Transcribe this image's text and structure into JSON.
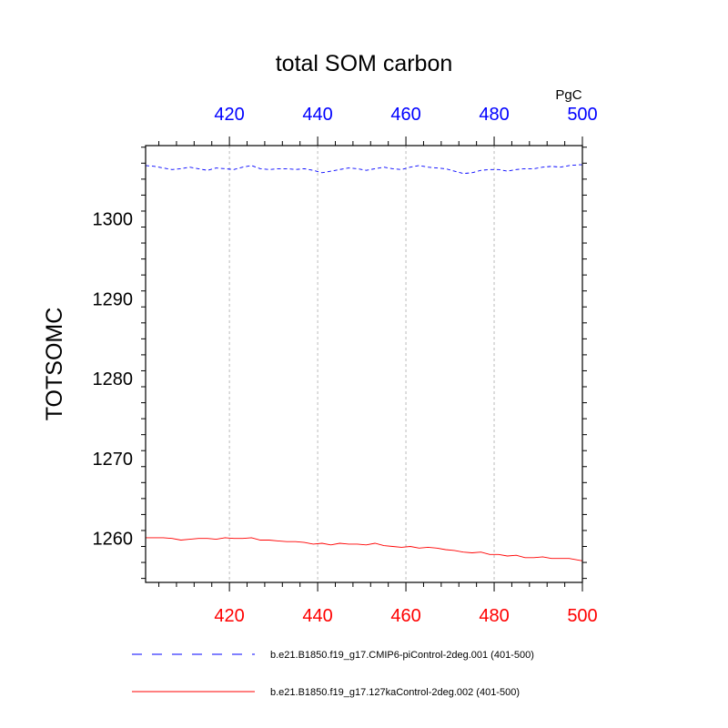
{
  "chart_data": {
    "type": "line",
    "title": "total SOM carbon",
    "units": "PgC",
    "ylabel": "TOTSOMC",
    "xlabel": "",
    "xlim": [
      401,
      500
    ],
    "ylim": [
      1254.5,
      1309.2
    ],
    "grid": "vertical dotted at major x ticks",
    "y_ticks": [
      1260,
      1270,
      1280,
      1290,
      1300
    ],
    "y_tick_labels": [
      "1260",
      "1270",
      "1280",
      "1290",
      "1300"
    ],
    "top_axis": {
      "color": "#0000ff",
      "ticks": [
        420,
        440,
        460,
        480,
        500
      ],
      "tick_labels": [
        "420",
        "440",
        "460",
        "480",
        "500"
      ]
    },
    "bottom_axis": {
      "color": "#ff0000",
      "ticks": [
        420,
        440,
        460,
        480,
        500
      ],
      "tick_labels": [
        "420",
        "440",
        "460",
        "480",
        "500"
      ]
    },
    "legend_placement": "below plot",
    "series": [
      {
        "name": "b.e21.B1850.f19_g17.CMIP6-piControl-2deg.001 (401-500)",
        "color": "#0000ff",
        "style": "dashed",
        "x": [
          401,
          403,
          405,
          407,
          409,
          411,
          413,
          415,
          417,
          419,
          421,
          423,
          425,
          427,
          429,
          431,
          433,
          435,
          437,
          439,
          441,
          443,
          445,
          447,
          449,
          451,
          453,
          455,
          457,
          459,
          461,
          463,
          465,
          467,
          469,
          471,
          473,
          475,
          477,
          479,
          481,
          483,
          485,
          487,
          489,
          491,
          493,
          495,
          497,
          499,
          500
        ],
        "y": [
          1306.7,
          1306.6,
          1306.4,
          1306.2,
          1306.3,
          1306.5,
          1306.3,
          1306.1,
          1306.4,
          1306.3,
          1306.2,
          1306.5,
          1306.7,
          1306.3,
          1306.2,
          1306.3,
          1306.3,
          1306.2,
          1306.3,
          1306.1,
          1305.8,
          1306.0,
          1306.2,
          1306.4,
          1306.3,
          1306.1,
          1306.3,
          1306.5,
          1306.3,
          1306.2,
          1306.5,
          1306.7,
          1306.5,
          1306.4,
          1306.3,
          1306.0,
          1305.7,
          1305.8,
          1306.1,
          1306.2,
          1306.2,
          1306.0,
          1306.2,
          1306.3,
          1306.3,
          1306.5,
          1306.6,
          1306.5,
          1306.7,
          1306.8,
          1306.8
        ]
      },
      {
        "name": "b.e21.B1850.f19_g17.127kaControl-2deg.002 (401-500)",
        "color": "#ff0000",
        "style": "solid",
        "x": [
          401,
          403,
          405,
          407,
          409,
          411,
          413,
          415,
          417,
          419,
          421,
          423,
          425,
          427,
          429,
          431,
          433,
          435,
          437,
          439,
          441,
          443,
          445,
          447,
          449,
          451,
          453,
          455,
          457,
          459,
          461,
          463,
          465,
          467,
          469,
          471,
          473,
          475,
          477,
          479,
          481,
          483,
          485,
          487,
          489,
          491,
          493,
          495,
          497,
          499,
          500
        ],
        "y": [
          1260.1,
          1260.1,
          1260.1,
          1260.0,
          1259.8,
          1259.9,
          1260.0,
          1260.0,
          1259.9,
          1260.1,
          1260.0,
          1260.0,
          1260.1,
          1259.8,
          1259.8,
          1259.7,
          1259.6,
          1259.6,
          1259.5,
          1259.3,
          1259.4,
          1259.2,
          1259.4,
          1259.3,
          1259.3,
          1259.2,
          1259.4,
          1259.1,
          1259.0,
          1258.9,
          1259.0,
          1258.8,
          1258.9,
          1258.8,
          1258.6,
          1258.5,
          1258.3,
          1258.2,
          1258.3,
          1258.0,
          1258.0,
          1257.8,
          1257.9,
          1257.6,
          1257.6,
          1257.7,
          1257.5,
          1257.5,
          1257.5,
          1257.3,
          1257.2
        ]
      }
    ]
  }
}
